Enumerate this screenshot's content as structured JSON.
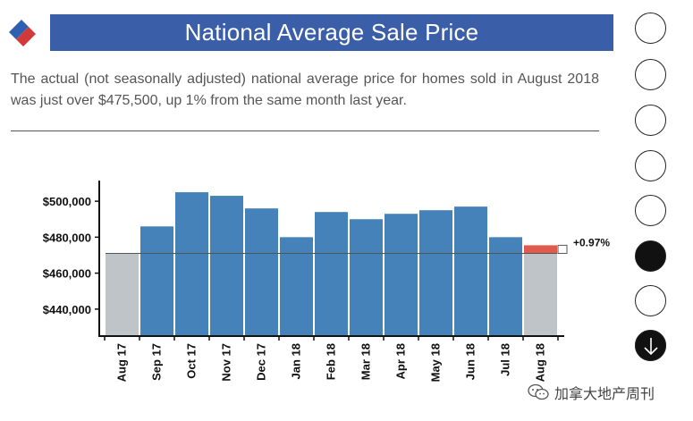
{
  "header": {
    "title": "National Average Sale Price"
  },
  "description": "The actual (not seasonally adjusted) national average price for homes sold in August 2018 was just over $475,500, up 1% from the same month last year.",
  "chart_data": {
    "type": "bar",
    "title": "National Average Sale Price",
    "categories": [
      "Aug 17",
      "Sep 17",
      "Oct 17",
      "Nov 17",
      "Dec 17",
      "Jan 18",
      "Feb 18",
      "Mar 18",
      "Apr 18",
      "May 18",
      "Jun 18",
      "Jul 18",
      "Aug 18"
    ],
    "values": [
      471000,
      486000,
      505000,
      503000,
      496000,
      480000,
      494000,
      490000,
      493000,
      495000,
      497000,
      480000,
      475500
    ],
    "ylim": [
      425000,
      510000
    ],
    "yticks": [
      440000,
      460000,
      480000,
      500000
    ],
    "ytick_labels": [
      "$440,000",
      "$460,000",
      "$480,000",
      "$500,000"
    ],
    "baseline_value": 471000,
    "change_label": "+0.97%",
    "colors": {
      "bar": "#4582ba",
      "comparison_bar": "#bfc4c9",
      "increase": "#e05a4e",
      "reference_line": "#555555"
    }
  },
  "nav": {
    "count": 8,
    "active_index": 5,
    "down_icon": "arrow-down-icon"
  },
  "watermark": {
    "text": "加拿大地产周刊",
    "icon": "wechat-icon"
  }
}
